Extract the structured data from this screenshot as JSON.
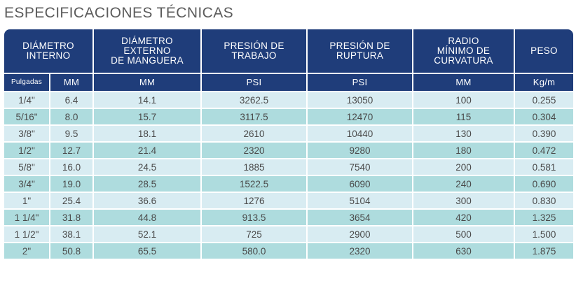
{
  "title": "ESPECIFICACIONES TÉCNICAS",
  "headers": [
    [
      "DIÁMETRO",
      "INTERNO"
    ],
    [
      "DIÁMETRO",
      "EXTERNO",
      "DE MANGUERA"
    ],
    [
      "PRESIÓN DE",
      "TRABAJO"
    ],
    [
      "PRESIÓN DE",
      "RUPTURA"
    ],
    [
      "RADIO",
      "MÍNIMO DE",
      "CURVATURA"
    ],
    [
      "PESO"
    ]
  ],
  "units": [
    "Pulgadas",
    "MM",
    "MM",
    "PSI",
    "PSI",
    "MM",
    "Kg/m"
  ],
  "rows": [
    [
      "1/4\"",
      "6.4",
      "14.1",
      "3262.5",
      "13050",
      "100",
      "0.255"
    ],
    [
      "5/16\"",
      "8.0",
      "15.7",
      "3117.5",
      "12470",
      "115",
      "0.304"
    ],
    [
      "3/8\"",
      "9.5",
      "18.1",
      "2610",
      "10440",
      "130",
      "0.390"
    ],
    [
      "1/2\"",
      "12.7",
      "21.4",
      "2320",
      "9280",
      "180",
      "0.472"
    ],
    [
      "5/8\"",
      "16.0",
      "24.5",
      "1885",
      "7540",
      "200",
      "0.581"
    ],
    [
      "3/4\"",
      "19.0",
      "28.5",
      "1522.5",
      "6090",
      "240",
      "0.690"
    ],
    [
      "1\"",
      "25.4",
      "36.6",
      "1276",
      "5104",
      "300",
      "0.830"
    ],
    [
      "1 1/4\"",
      "31.8",
      "44.8",
      "913.5",
      "3654",
      "420",
      "1.325"
    ],
    [
      "1 1/2\"",
      "38.1",
      "52.1",
      "725",
      "2900",
      "500",
      "1.500"
    ],
    [
      "2\"",
      "50.8",
      "65.5",
      "580.0",
      "2320",
      "630",
      "1.875"
    ]
  ],
  "colors": {
    "header_bg": "#1f3d7a",
    "header_text": "#ffffff",
    "row_light": "#d8ecf2",
    "row_teal": "#aedcde",
    "cell_text": "#4a4a4a",
    "title_text": "#5c5c5c"
  }
}
